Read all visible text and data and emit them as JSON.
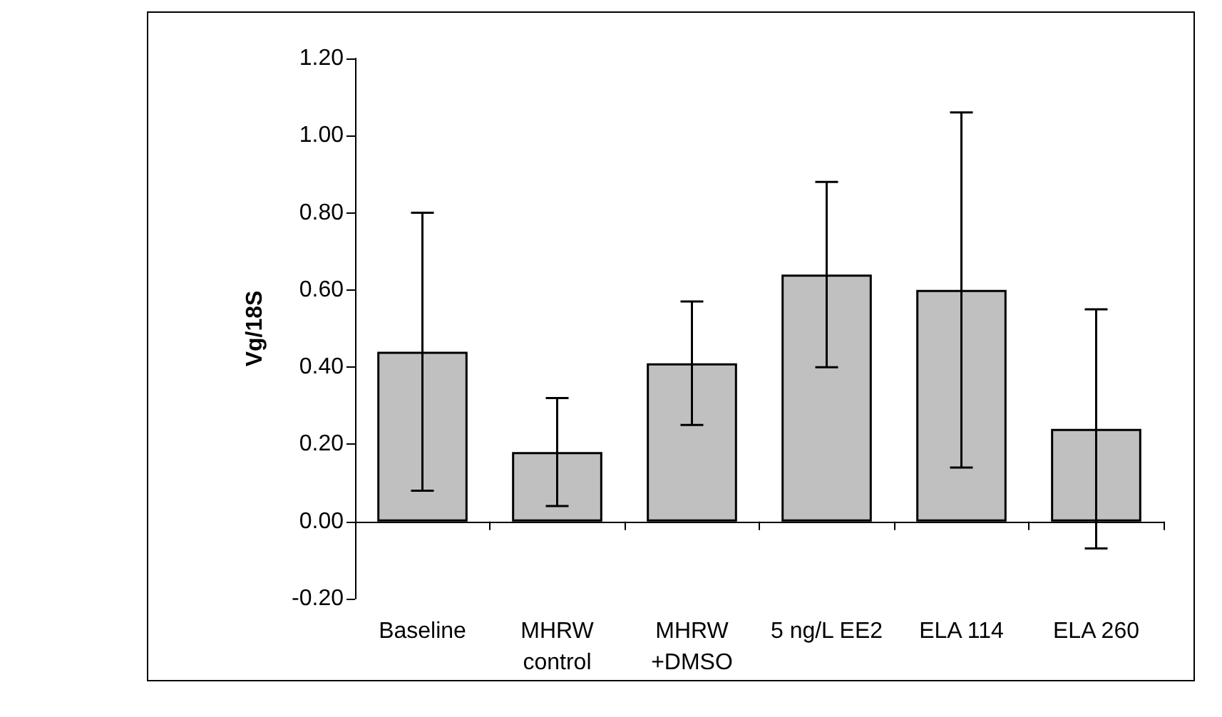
{
  "chart_data": {
    "type": "bar",
    "ylabel": "Vg/18S",
    "categories": [
      "Baseline",
      "MHRW\ncontrol",
      "MHRW\n+DMSO",
      "5 ng/L EE2",
      "ELA 114",
      "ELA 260"
    ],
    "values": [
      0.44,
      0.18,
      0.41,
      0.64,
      0.6,
      0.24
    ],
    "errors": [
      0.36,
      0.14,
      0.16,
      0.24,
      0.46,
      0.31
    ],
    "color": "#c0c0c0",
    "ylim": [
      -0.2,
      1.2
    ],
    "yticks": [
      {
        "value": -0.2,
        "label": "-0.20"
      },
      {
        "value": 0,
        "label": "0.00"
      },
      {
        "value": 0.2,
        "label": "0.20"
      },
      {
        "value": 0.4,
        "label": "0.40"
      },
      {
        "value": 0.6,
        "label": "0.60"
      },
      {
        "value": 0.8,
        "label": "0.80"
      },
      {
        "value": 1.0,
        "label": "1.00"
      },
      {
        "value": 1.2,
        "label": "1.20"
      }
    ]
  }
}
